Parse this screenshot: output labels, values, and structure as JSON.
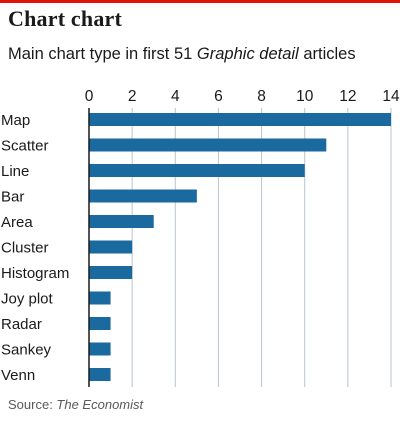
{
  "header": {
    "title": "Chart chart",
    "subtitle_pre": "Main chart type in first 51 ",
    "subtitle_em": "Graphic detail",
    "subtitle_post": " articles"
  },
  "footer": {
    "source_prefix": "Source: ",
    "source_name": "The Economist"
  },
  "colors": {
    "bar": "#1a6aa0",
    "grid": "#b8c4cc",
    "accent": "#e3120b",
    "axis": "#1a1a1a"
  },
  "chart_data": {
    "type": "bar",
    "orientation": "horizontal",
    "categories": [
      "Map",
      "Scatter",
      "Line",
      "Bar",
      "Area",
      "Cluster",
      "Histogram",
      "Joy plot",
      "Radar",
      "Sankey",
      "Venn"
    ],
    "values": [
      14,
      11,
      10,
      5,
      3,
      2,
      2,
      1,
      1,
      1,
      1
    ],
    "xlim": [
      0,
      14
    ],
    "xticks": [
      0,
      2,
      4,
      6,
      8,
      10,
      12,
      14
    ],
    "xtick_position": "top",
    "grid": true
  }
}
